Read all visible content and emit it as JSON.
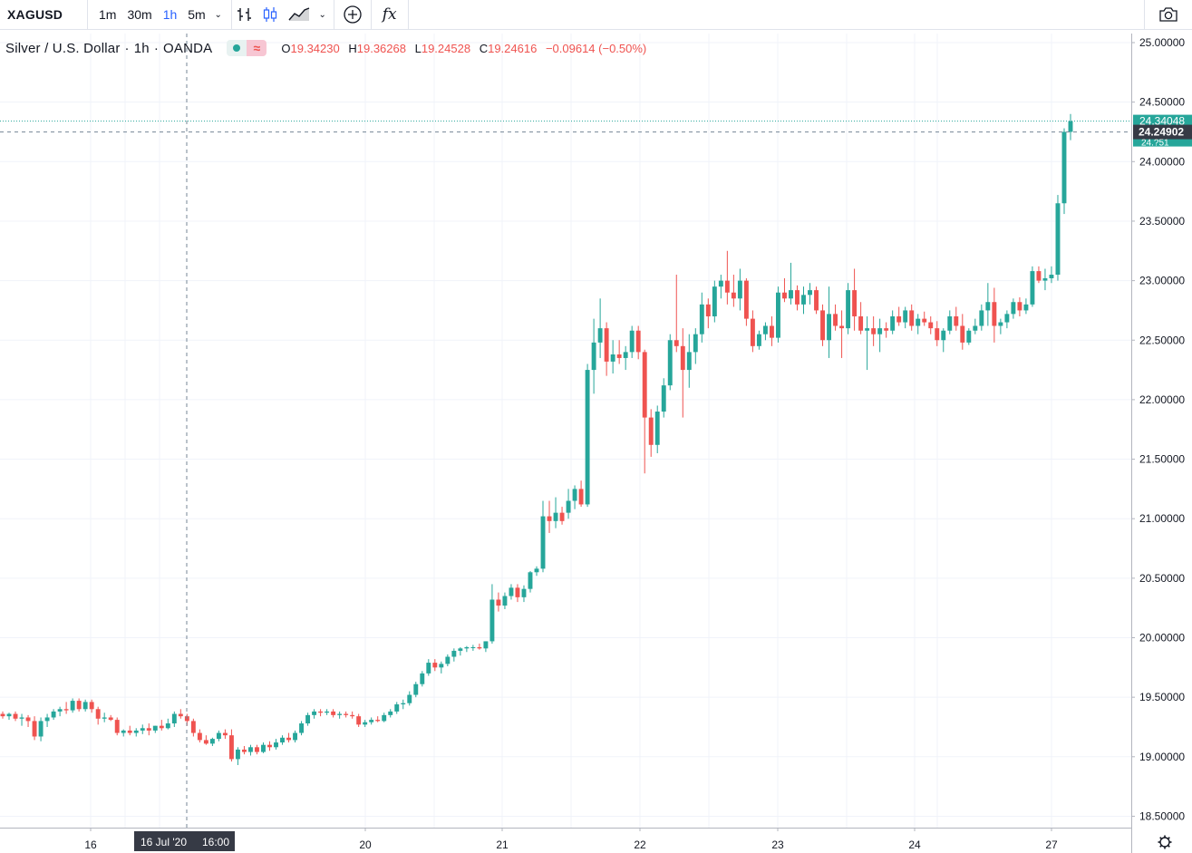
{
  "toolbar": {
    "symbol": "XAGUSD",
    "intervals": [
      "1m",
      "30m",
      "1h",
      "5m"
    ],
    "active_interval": "1h",
    "icons": [
      "bar-style-icon",
      "candle-style-icon",
      "area-style-icon",
      "chevron-down-icon",
      "compare-add-icon",
      "indicators-fx-icon",
      "camera-icon"
    ],
    "fx_label": "fx"
  },
  "legend": {
    "name": "Silver / U.S. Dollar",
    "interval": "1h",
    "exchange": "OANDA",
    "open_label": "O",
    "open": "19.34230",
    "high_label": "H",
    "high": "19.36268",
    "low_label": "L",
    "low": "19.24528",
    "close_label": "C",
    "close": "19.24616",
    "change": "−0.09614 (−0.50%)"
  },
  "crosshair": {
    "date_label": "16 Jul '20",
    "time_label": "16:00",
    "price_label": "24.24902",
    "price": 24.24902
  },
  "colors": {
    "up": "#26a69a",
    "down": "#ef5350",
    "grid": "#f0f3fa",
    "axis_text": "#131722"
  },
  "chart_data": {
    "type": "candlestick",
    "title": "Silver / U.S. Dollar · 1h · OANDA",
    "ylim": [
      18.4,
      25.1
    ],
    "y_ticks": [
      "25.00000",
      "24.50000",
      "24.00000",
      "23.50000",
      "23.00000",
      "22.50000",
      "22.00000",
      "21.50000",
      "21.00000",
      "20.50000",
      "20.00000",
      "19.50000",
      "19.00000",
      "18.50000"
    ],
    "x_ticks": [
      {
        "label": "16",
        "day": 16
      },
      {
        "label": "20",
        "day": 20
      },
      {
        "label": "21",
        "day": 21
      },
      {
        "label": "22",
        "day": 22
      },
      {
        "label": "23",
        "day": 23
      },
      {
        "label": "24",
        "day": 24
      },
      {
        "label": "27",
        "day": 27
      }
    ],
    "last_price": "24.34048",
    "last_value": 24.34048,
    "last_price_partial": "24.?51",
    "candles": [
      [
        19.36,
        19.38,
        19.32,
        19.34
      ],
      [
        19.34,
        19.37,
        19.31,
        19.36
      ],
      [
        19.36,
        19.38,
        19.3,
        19.32
      ],
      [
        19.32,
        19.36,
        19.26,
        19.33
      ],
      [
        19.33,
        19.35,
        19.25,
        19.3
      ],
      [
        19.3,
        19.34,
        19.14,
        19.17
      ],
      [
        19.17,
        19.33,
        19.13,
        19.3
      ],
      [
        19.3,
        19.36,
        19.25,
        19.33
      ],
      [
        19.33,
        19.4,
        19.31,
        19.38
      ],
      [
        19.38,
        19.42,
        19.34,
        19.4
      ],
      [
        19.4,
        19.46,
        19.36,
        19.39
      ],
      [
        19.39,
        19.49,
        19.37,
        19.47
      ],
      [
        19.47,
        19.49,
        19.38,
        19.4
      ],
      [
        19.4,
        19.48,
        19.38,
        19.46
      ],
      [
        19.46,
        19.48,
        19.37,
        19.4
      ],
      [
        19.4,
        19.42,
        19.27,
        19.32
      ],
      [
        19.32,
        19.37,
        19.29,
        19.33
      ],
      [
        19.33,
        19.35,
        19.3,
        19.31
      ],
      [
        19.31,
        19.33,
        19.18,
        19.2
      ],
      [
        19.2,
        19.23,
        19.17,
        19.22
      ],
      [
        19.22,
        19.26,
        19.18,
        19.2
      ],
      [
        19.2,
        19.24,
        19.17,
        19.22
      ],
      [
        19.22,
        19.27,
        19.19,
        19.24
      ],
      [
        19.24,
        19.28,
        19.18,
        19.22
      ],
      [
        19.22,
        19.26,
        19.2,
        19.26
      ],
      [
        19.26,
        19.31,
        19.22,
        19.24
      ],
      [
        19.24,
        19.32,
        19.23,
        19.28
      ],
      [
        19.28,
        19.38,
        19.25,
        19.36
      ],
      [
        19.36,
        19.4,
        19.32,
        19.34
      ],
      [
        19.34,
        19.36,
        19.26,
        19.3
      ],
      [
        19.3,
        19.32,
        19.17,
        19.2
      ],
      [
        19.2,
        19.23,
        19.12,
        19.14
      ],
      [
        19.14,
        19.18,
        19.1,
        19.11
      ],
      [
        19.11,
        19.16,
        19.09,
        19.15
      ],
      [
        19.15,
        19.22,
        19.13,
        19.2
      ],
      [
        19.2,
        19.23,
        19.15,
        19.18
      ],
      [
        19.18,
        19.23,
        18.96,
        18.98
      ],
      [
        18.98,
        19.08,
        18.93,
        19.06
      ],
      [
        19.06,
        19.09,
        19.02,
        19.04
      ],
      [
        19.04,
        19.1,
        19.01,
        19.08
      ],
      [
        19.08,
        19.1,
        19.02,
        19.04
      ],
      [
        19.04,
        19.12,
        19.03,
        19.1
      ],
      [
        19.1,
        19.13,
        19.05,
        19.08
      ],
      [
        19.08,
        19.15,
        19.06,
        19.12
      ],
      [
        19.12,
        19.18,
        19.1,
        19.16
      ],
      [
        19.16,
        19.2,
        19.12,
        19.14
      ],
      [
        19.14,
        19.22,
        19.12,
        19.2
      ],
      [
        19.2,
        19.3,
        19.18,
        19.28
      ],
      [
        19.28,
        19.37,
        19.26,
        19.35
      ],
      [
        19.35,
        19.4,
        19.32,
        19.38
      ],
      [
        19.38,
        19.4,
        19.34,
        19.37
      ],
      [
        19.37,
        19.4,
        19.35,
        19.38
      ],
      [
        19.38,
        19.4,
        19.33,
        19.35
      ],
      [
        19.35,
        19.38,
        19.32,
        19.36
      ],
      [
        19.36,
        19.38,
        19.33,
        19.35
      ],
      [
        19.35,
        19.38,
        19.32,
        19.34
      ],
      [
        19.34,
        19.36,
        19.25,
        19.27
      ],
      [
        19.27,
        19.31,
        19.25,
        19.29
      ],
      [
        19.29,
        19.33,
        19.27,
        19.31
      ],
      [
        19.31,
        19.34,
        19.29,
        19.3
      ],
      [
        19.3,
        19.37,
        19.29,
        19.35
      ],
      [
        19.35,
        19.4,
        19.33,
        19.38
      ],
      [
        19.38,
        19.46,
        19.36,
        19.44
      ],
      [
        19.44,
        19.48,
        19.4,
        19.45
      ],
      [
        19.45,
        19.55,
        19.43,
        19.52
      ],
      [
        19.52,
        19.63,
        19.5,
        19.61
      ],
      [
        19.61,
        19.72,
        19.59,
        19.7
      ],
      [
        19.7,
        19.82,
        19.68,
        19.79
      ],
      [
        19.79,
        19.82,
        19.72,
        19.75
      ],
      [
        19.75,
        19.8,
        19.7,
        19.78
      ],
      [
        19.78,
        19.86,
        19.76,
        19.84
      ],
      [
        19.84,
        19.91,
        19.8,
        19.89
      ],
      [
        19.89,
        19.92,
        19.85,
        19.91
      ],
      [
        19.91,
        19.93,
        19.88,
        19.92
      ],
      [
        19.92,
        19.94,
        19.89,
        19.92
      ],
      [
        19.92,
        19.95,
        19.9,
        19.91
      ],
      [
        19.91,
        19.97,
        19.88,
        19.97
      ],
      [
        19.97,
        20.45,
        19.95,
        20.32
      ],
      [
        20.32,
        20.38,
        20.22,
        20.27
      ],
      [
        20.27,
        20.38,
        20.24,
        20.35
      ],
      [
        20.35,
        20.45,
        20.32,
        20.42
      ],
      [
        20.42,
        20.45,
        20.3,
        20.34
      ],
      [
        20.34,
        20.44,
        20.3,
        20.41
      ],
      [
        20.41,
        20.56,
        20.38,
        20.55
      ],
      [
        20.55,
        20.6,
        20.52,
        20.58
      ],
      [
        20.58,
        21.15,
        20.55,
        21.02
      ],
      [
        21.02,
        21.15,
        20.88,
        20.98
      ],
      [
        20.98,
        21.18,
        20.92,
        21.05
      ],
      [
        21.05,
        21.1,
        20.95,
        20.98
      ],
      [
        21.05,
        21.25,
        21.0,
        21.15
      ],
      [
        21.15,
        21.28,
        21.08,
        21.25
      ],
      [
        21.25,
        21.32,
        21.1,
        21.12
      ],
      [
        21.12,
        22.3,
        21.1,
        22.25
      ],
      [
        22.25,
        22.68,
        22.05,
        22.48
      ],
      [
        22.48,
        22.85,
        22.35,
        22.6
      ],
      [
        22.6,
        22.65,
        22.2,
        22.32
      ],
      [
        22.32,
        22.5,
        22.22,
        22.38
      ],
      [
        22.38,
        22.5,
        22.3,
        22.35
      ],
      [
        22.35,
        22.45,
        22.25,
        22.4
      ],
      [
        22.4,
        22.62,
        22.35,
        22.58
      ],
      [
        22.58,
        22.62,
        22.34,
        22.4
      ],
      [
        22.4,
        22.42,
        21.38,
        21.85
      ],
      [
        21.85,
        21.92,
        21.52,
        21.62
      ],
      [
        21.62,
        21.95,
        21.55,
        21.9
      ],
      [
        21.9,
        22.18,
        21.85,
        22.12
      ],
      [
        22.12,
        22.55,
        22.08,
        22.5
      ],
      [
        22.5,
        23.05,
        22.4,
        22.45
      ],
      [
        22.45,
        22.6,
        21.85,
        22.25
      ],
      [
        22.25,
        22.55,
        22.1,
        22.4
      ],
      [
        22.4,
        22.6,
        22.3,
        22.55
      ],
      [
        22.55,
        22.9,
        22.48,
        22.8
      ],
      [
        22.8,
        22.85,
        22.6,
        22.7
      ],
      [
        22.7,
        23.0,
        22.65,
        22.95
      ],
      [
        22.95,
        23.05,
        22.85,
        23.0
      ],
      [
        23.0,
        23.25,
        22.8,
        22.9
      ],
      [
        22.9,
        23.05,
        22.78,
        22.85
      ],
      [
        22.85,
        23.1,
        22.75,
        23.0
      ],
      [
        23.0,
        23.02,
        22.62,
        22.68
      ],
      [
        22.68,
        22.75,
        22.4,
        22.45
      ],
      [
        22.45,
        22.58,
        22.42,
        22.55
      ],
      [
        22.55,
        22.65,
        22.5,
        22.62
      ],
      [
        22.62,
        22.7,
        22.45,
        22.52
      ],
      [
        22.52,
        22.95,
        22.48,
        22.9
      ],
      [
        22.9,
        23.02,
        22.82,
        22.85
      ],
      [
        22.85,
        23.15,
        22.8,
        22.92
      ],
      [
        22.92,
        22.96,
        22.75,
        22.8
      ],
      [
        22.8,
        22.95,
        22.72,
        22.88
      ],
      [
        22.88,
        22.98,
        22.8,
        22.92
      ],
      [
        22.92,
        22.95,
        22.72,
        22.75
      ],
      [
        22.75,
        22.8,
        22.45,
        22.5
      ],
      [
        22.5,
        22.95,
        22.35,
        22.72
      ],
      [
        22.72,
        22.8,
        22.58,
        22.62
      ],
      [
        22.62,
        22.75,
        22.35,
        22.6
      ],
      [
        22.6,
        22.98,
        22.55,
        22.92
      ],
      [
        22.92,
        23.1,
        22.58,
        22.7
      ],
      [
        22.7,
        22.82,
        22.55,
        22.58
      ],
      [
        22.58,
        22.7,
        22.25,
        22.6
      ],
      [
        22.6,
        22.7,
        22.45,
        22.55
      ],
      [
        22.55,
        22.68,
        22.4,
        22.6
      ],
      [
        22.6,
        22.65,
        22.52,
        22.58
      ],
      [
        22.58,
        22.75,
        22.55,
        22.7
      ],
      [
        22.7,
        22.78,
        22.62,
        22.65
      ],
      [
        22.65,
        22.78,
        22.6,
        22.75
      ],
      [
        22.75,
        22.8,
        22.58,
        22.62
      ],
      [
        22.62,
        22.72,
        22.55,
        22.68
      ],
      [
        22.68,
        22.74,
        22.62,
        22.65
      ],
      [
        22.65,
        22.7,
        22.55,
        22.6
      ],
      [
        22.6,
        22.66,
        22.45,
        22.5
      ],
      [
        22.5,
        22.6,
        22.4,
        22.58
      ],
      [
        22.58,
        22.75,
        22.55,
        22.7
      ],
      [
        22.7,
        22.78,
        22.58,
        22.62
      ],
      [
        22.62,
        22.72,
        22.42,
        22.48
      ],
      [
        22.48,
        22.6,
        22.46,
        22.58
      ],
      [
        22.58,
        22.68,
        22.55,
        22.62
      ],
      [
        22.62,
        22.8,
        22.58,
        22.75
      ],
      [
        22.75,
        22.98,
        22.62,
        22.82
      ],
      [
        22.82,
        22.94,
        22.48,
        22.62
      ],
      [
        22.62,
        22.68,
        22.55,
        22.65
      ],
      [
        22.65,
        22.75,
        22.6,
        22.72
      ],
      [
        22.72,
        22.85,
        22.68,
        22.82
      ],
      [
        22.82,
        22.86,
        22.7,
        22.75
      ],
      [
        22.75,
        22.85,
        22.72,
        22.8
      ],
      [
        22.8,
        23.12,
        22.78,
        23.08
      ],
      [
        23.08,
        23.12,
        22.98,
        23.0
      ],
      [
        23.0,
        23.1,
        22.92,
        23.02
      ],
      [
        23.02,
        23.12,
        22.98,
        23.05
      ],
      [
        23.05,
        23.72,
        23.0,
        23.65
      ],
      [
        23.65,
        24.28,
        23.56,
        24.25
      ],
      [
        24.25,
        24.4,
        24.18,
        24.34
      ]
    ]
  }
}
